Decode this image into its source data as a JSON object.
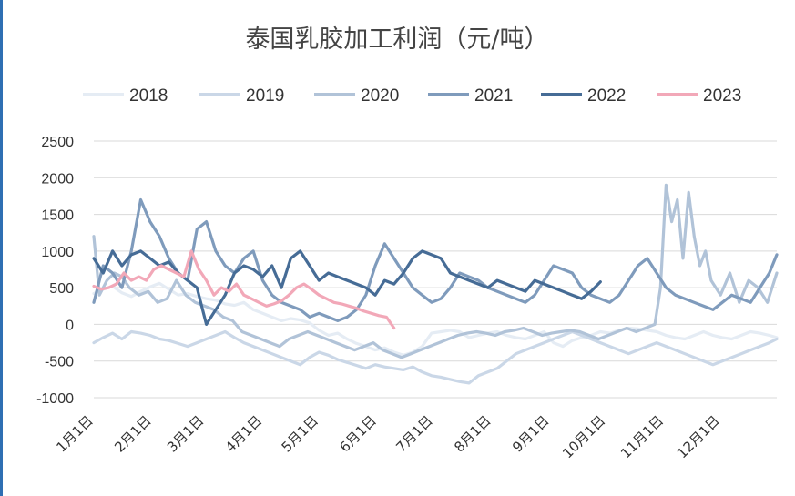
{
  "chart_data": {
    "type": "line",
    "title": "泰国乳胶加工利润（元/吨）",
    "xlabel": "",
    "ylabel": "",
    "ylim": [
      -1000,
      2500
    ],
    "yticks": [
      "2500",
      "2000",
      "1500",
      "1000",
      "500",
      "0",
      "-500",
      "-1000"
    ],
    "xticks": [
      "1月1日",
      "2月1日",
      "3月1日",
      "4月1日",
      "5月1日",
      "6月1日",
      "7月1日",
      "8月1日",
      "9月1日",
      "10月1日",
      "11月1日",
      "12月1日"
    ],
    "grid": "horizontal",
    "legend_position": "top",
    "series": [
      {
        "name": "2018",
        "color": "#e5ecf4",
        "x": [
          1,
          6,
          11,
          16,
          21,
          26,
          31,
          36,
          41,
          46,
          51,
          56,
          61,
          66,
          71,
          76,
          81,
          86,
          91,
          96,
          101,
          106,
          111,
          116,
          121,
          126,
          131,
          136,
          141,
          146,
          151,
          156,
          161,
          166,
          171,
          176,
          181,
          186,
          191,
          196,
          201,
          206,
          211,
          216,
          221,
          226,
          231,
          236,
          241,
          246,
          251,
          256,
          261,
          266,
          271,
          276,
          281,
          286,
          291,
          296,
          301,
          306,
          311,
          316,
          321,
          326,
          331,
          336,
          341,
          346,
          351,
          356,
          361,
          365
        ],
        "y": [
          420,
          480,
          520,
          430,
          380,
          450,
          510,
          560,
          480,
          400,
          420,
          380,
          350,
          330,
          280,
          260,
          300,
          200,
          150,
          100,
          50,
          80,
          60,
          20,
          -80,
          -150,
          -120,
          -200,
          -260,
          -300,
          -350,
          -320,
          -380,
          -420,
          -380,
          -300,
          -120,
          -100,
          -80,
          -100,
          -180,
          -150,
          -120,
          -100,
          -150,
          -180,
          -200,
          -150,
          -100,
          -250,
          -300,
          -220,
          -180,
          -150,
          -100,
          -120,
          -80,
          -50,
          -60,
          -80,
          -100,
          -150,
          -180,
          -200,
          -150,
          -100,
          -150,
          -180,
          -200,
          -150,
          -100,
          -120,
          -150,
          -180
        ]
      },
      {
        "name": "2019",
        "color": "#cad7e7",
        "x": [
          1,
          6,
          11,
          16,
          21,
          26,
          31,
          36,
          41,
          46,
          51,
          56,
          61,
          66,
          71,
          76,
          81,
          86,
          91,
          96,
          101,
          106,
          111,
          116,
          121,
          126,
          131,
          136,
          141,
          146,
          151,
          156,
          161,
          166,
          171,
          176,
          181,
          186,
          191,
          196,
          201,
          206,
          211,
          216,
          221,
          226,
          231,
          236,
          241,
          246,
          251,
          256,
          261,
          266,
          271,
          276,
          281,
          286,
          291,
          296,
          301,
          306,
          311,
          316,
          321,
          326,
          331,
          336,
          341,
          346,
          351,
          356,
          361,
          365
        ],
        "y": [
          -250,
          -180,
          -120,
          -200,
          -100,
          -120,
          -150,
          -200,
          -220,
          -260,
          -300,
          -250,
          -200,
          -150,
          -100,
          -180,
          -250,
          -300,
          -350,
          -400,
          -450,
          -500,
          -550,
          -450,
          -380,
          -420,
          -480,
          -520,
          -560,
          -600,
          -550,
          -580,
          -600,
          -620,
          -580,
          -650,
          -700,
          -720,
          -750,
          -780,
          -800,
          -700,
          -650,
          -600,
          -500,
          -400,
          -350,
          -300,
          -250,
          -200,
          -150,
          -100,
          -150,
          -200,
          -250,
          -300,
          -350,
          -400,
          -350,
          -300,
          -250,
          -300,
          -350,
          -400,
          -450,
          -500,
          -550,
          -500,
          -450,
          -400,
          -350,
          -300,
          -250,
          -200
        ]
      },
      {
        "name": "2020",
        "color": "#b1c3d8",
        "x": [
          1,
          4,
          8,
          12,
          16,
          20,
          25,
          30,
          35,
          40,
          45,
          50,
          55,
          60,
          65,
          70,
          75,
          80,
          85,
          90,
          95,
          100,
          105,
          110,
          115,
          120,
          125,
          130,
          135,
          140,
          145,
          150,
          155,
          160,
          165,
          170,
          175,
          180,
          185,
          190,
          195,
          200,
          205,
          210,
          215,
          220,
          225,
          230,
          235,
          240,
          245,
          250,
          255,
          260,
          265,
          270,
          275,
          280,
          285,
          290,
          295,
          300,
          303,
          306,
          309,
          312,
          315,
          318,
          321,
          324,
          327,
          330,
          335,
          340,
          345,
          350,
          355,
          360,
          365
        ],
        "y": [
          1200,
          400,
          600,
          700,
          650,
          500,
          400,
          450,
          300,
          350,
          600,
          400,
          300,
          250,
          200,
          100,
          50,
          -100,
          -150,
          -200,
          -250,
          -300,
          -200,
          -150,
          -100,
          -150,
          -200,
          -250,
          -300,
          -350,
          -300,
          -250,
          -350,
          -400,
          -450,
          -400,
          -350,
          -300,
          -250,
          -200,
          -150,
          -120,
          -100,
          -120,
          -150,
          -100,
          -80,
          -50,
          -100,
          -150,
          -120,
          -100,
          -80,
          -100,
          -150,
          -200,
          -150,
          -100,
          -50,
          -100,
          -50,
          0,
          500,
          1900,
          1400,
          1700,
          900,
          1800,
          1200,
          800,
          1000,
          600,
          400,
          700,
          300,
          600,
          500,
          300,
          700
        ]
      },
      {
        "name": "2021",
        "color": "#7f9bbc",
        "x": [
          1,
          6,
          11,
          16,
          21,
          26,
          31,
          36,
          41,
          46,
          51,
          56,
          61,
          66,
          71,
          76,
          81,
          86,
          91,
          96,
          101,
          106,
          111,
          116,
          121,
          126,
          131,
          136,
          141,
          146,
          151,
          156,
          161,
          166,
          171,
          176,
          181,
          186,
          191,
          196,
          201,
          206,
          211,
          216,
          221,
          226,
          231,
          236,
          241,
          246,
          251,
          256,
          261,
          266,
          271,
          276,
          281,
          286,
          291,
          296,
          301,
          306,
          311,
          316,
          321,
          326,
          331,
          336,
          341,
          346,
          351,
          356,
          361,
          365
        ],
        "y": [
          300,
          800,
          700,
          500,
          1000,
          1700,
          1400,
          1200,
          900,
          700,
          600,
          1300,
          1400,
          1000,
          800,
          700,
          900,
          1000,
          600,
          400,
          300,
          250,
          200,
          100,
          150,
          100,
          50,
          100,
          200,
          400,
          800,
          1100,
          900,
          700,
          500,
          400,
          300,
          350,
          500,
          700,
          650,
          600,
          500,
          450,
          400,
          350,
          300,
          400,
          600,
          800,
          750,
          700,
          500,
          400,
          350,
          300,
          400,
          600,
          800,
          900,
          700,
          500,
          400,
          350,
          300,
          250,
          200,
          300,
          400,
          350,
          300,
          500,
          700,
          950
        ]
      },
      {
        "name": "2022",
        "color": "#466c96",
        "x": [
          1,
          6,
          11,
          16,
          21,
          26,
          31,
          36,
          41,
          46,
          51,
          56,
          61,
          66,
          71,
          76,
          81,
          86,
          91,
          96,
          101,
          106,
          111,
          116,
          121,
          126,
          131,
          136,
          141,
          146,
          151,
          156,
          161,
          166,
          171,
          176,
          181,
          186,
          191,
          196,
          201,
          206,
          211,
          216,
          221,
          226,
          231,
          236,
          241,
          246,
          251,
          256,
          261,
          266,
          271
        ],
        "y": [
          900,
          700,
          1000,
          800,
          950,
          1000,
          900,
          800,
          850,
          700,
          600,
          500,
          0,
          200,
          400,
          700,
          800,
          750,
          650,
          800,
          500,
          900,
          1000,
          800,
          600,
          700,
          650,
          600,
          550,
          500,
          400,
          600,
          550,
          700,
          900,
          1000,
          950,
          900,
          700,
          650,
          600,
          550,
          500,
          600,
          550,
          500,
          450,
          600,
          550,
          500,
          450,
          400,
          350,
          450,
          580
        ]
      },
      {
        "name": "2023",
        "color": "#f2a8b8",
        "x": [
          1,
          5,
          9,
          13,
          17,
          21,
          25,
          29,
          33,
          37,
          41,
          45,
          49,
          53,
          57,
          61,
          65,
          69,
          73,
          77,
          81,
          85,
          89,
          93,
          97,
          101,
          105,
          109,
          113,
          117,
          121,
          125,
          129,
          133,
          137,
          141,
          145,
          149,
          153,
          157,
          161
        ],
        "y": [
          520,
          480,
          500,
          550,
          700,
          600,
          650,
          600,
          750,
          800,
          750,
          700,
          650,
          1000,
          750,
          600,
          400,
          500,
          450,
          550,
          400,
          350,
          300,
          250,
          280,
          320,
          400,
          500,
          550,
          480,
          400,
          350,
          300,
          280,
          250,
          220,
          180,
          150,
          120,
          100,
          -50
        ]
      }
    ]
  }
}
